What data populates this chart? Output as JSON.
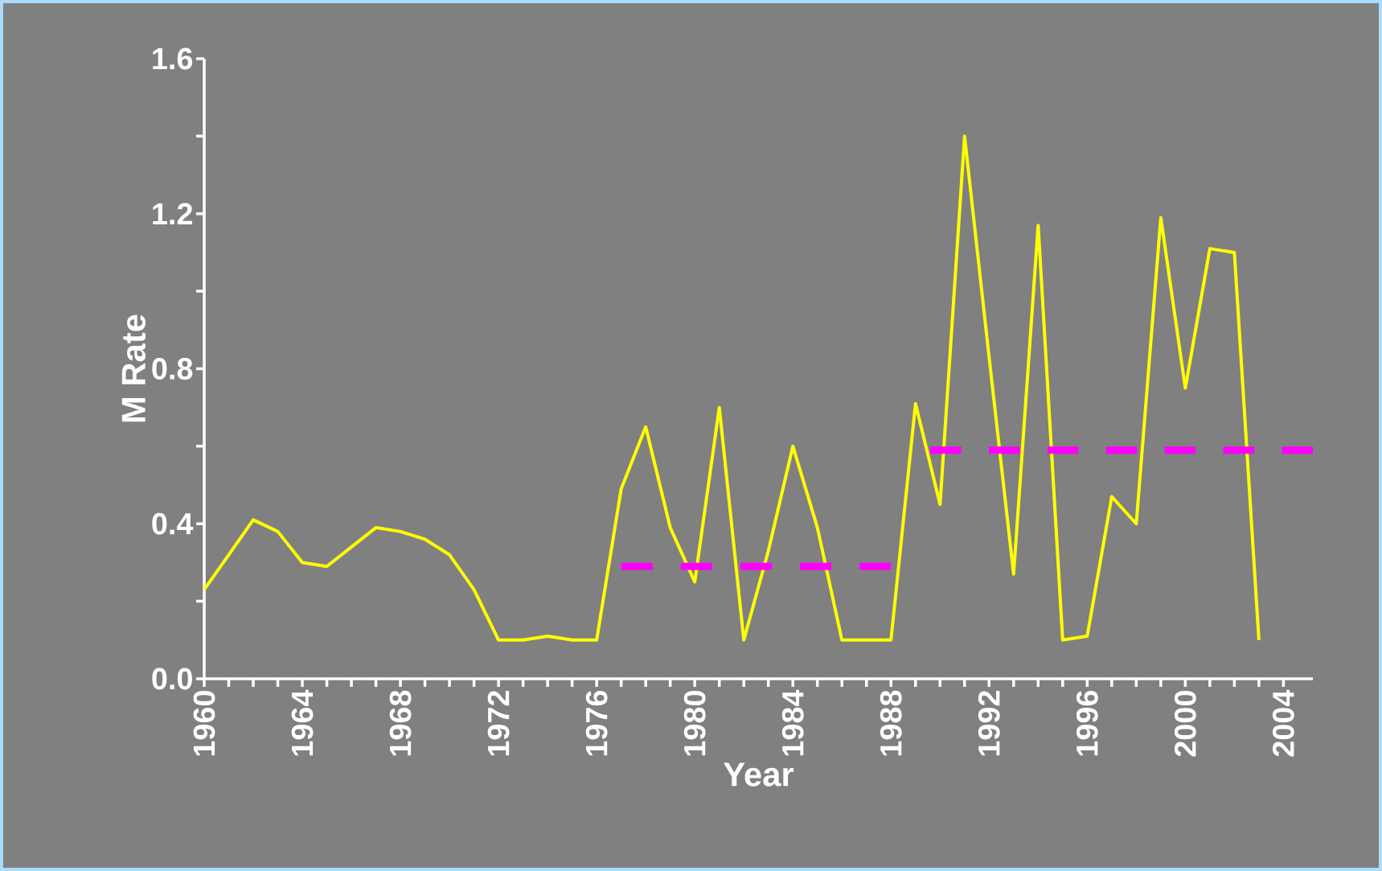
{
  "chart_data": {
    "type": "line",
    "xlabel": "Year",
    "ylabel": "M Rate",
    "xlim": [
      1960,
      2005.2
    ],
    "ylim": [
      0,
      1.6
    ],
    "xticks": [
      1960,
      {
        "value": 1961,
        "label": null
      },
      {
        "value": 1962,
        "label": null
      },
      {
        "value": 1963,
        "label": null
      },
      1964,
      {
        "value": 1965,
        "label": null
      },
      {
        "value": 1966,
        "label": null
      },
      {
        "value": 1967,
        "label": null
      },
      1968,
      {
        "value": 1969,
        "label": null
      },
      {
        "value": 1970,
        "label": null
      },
      {
        "value": 1971,
        "label": null
      },
      1972,
      {
        "value": 1973,
        "label": null
      },
      {
        "value": 1974,
        "label": null
      },
      {
        "value": 1975,
        "label": null
      },
      1976,
      {
        "value": 1977,
        "label": null
      },
      {
        "value": 1978,
        "label": null
      },
      {
        "value": 1979,
        "label": null
      },
      1980,
      {
        "value": 1981,
        "label": null
      },
      {
        "value": 1982,
        "label": null
      },
      {
        "value": 1983,
        "label": null
      },
      1984,
      {
        "value": 1985,
        "label": null
      },
      {
        "value": 1986,
        "label": null
      },
      {
        "value": 1987,
        "label": null
      },
      1988,
      {
        "value": 1989,
        "label": null
      },
      {
        "value": 1990,
        "label": null
      },
      {
        "value": 1991,
        "label": null
      },
      1992,
      {
        "value": 1993,
        "label": null
      },
      {
        "value": 1994,
        "label": null
      },
      {
        "value": 1995,
        "label": null
      },
      1996,
      {
        "value": 1997,
        "label": null
      },
      {
        "value": 1998,
        "label": null
      },
      {
        "value": 1999,
        "label": null
      },
      2000,
      {
        "value": 2001,
        "label": null
      },
      {
        "value": 2002,
        "label": null
      },
      {
        "value": 2003,
        "label": null
      },
      2004
    ],
    "yticks": [
      {
        "value": 0,
        "label": "0.0"
      },
      {
        "value": 0.2,
        "label": null
      },
      0.4,
      {
        "value": 0.6,
        "label": null
      },
      0.8,
      {
        "value": 1.0,
        "label": null
      },
      1.2,
      {
        "value": 1.4,
        "label": null
      },
      1.6
    ],
    "x": [
      1960,
      1961,
      1962,
      1963,
      1964,
      1965,
      1966,
      1967,
      1968,
      1969,
      1970,
      1971,
      1972,
      1973,
      1974,
      1975,
      1976,
      1977,
      1978,
      1979,
      1980,
      1981,
      1982,
      1983,
      1984,
      1985,
      1986,
      1987,
      1988,
      1989,
      1990,
      1991,
      1992,
      1993,
      1994,
      1995,
      1996,
      1997,
      1998,
      1999,
      2000,
      2001,
      2002,
      2003
    ],
    "series": [
      {
        "color": "#ffff00",
        "line_style": "solid",
        "values": [
          0.23,
          0.32,
          0.41,
          0.38,
          0.3,
          0.29,
          0.34,
          0.39,
          0.38,
          0.36,
          0.32,
          0.23,
          0.1,
          0.1,
          0.11,
          0.1,
          0.1,
          0.49,
          0.65,
          0.39,
          0.25,
          0.7,
          0.1,
          0.33,
          0.6,
          0.39,
          0.1,
          0.1,
          0.1,
          0.71,
          0.45,
          1.4,
          0.83,
          0.27,
          1.17,
          0.1,
          0.11,
          0.47,
          0.4,
          1.19,
          0.75,
          1.11,
          1.1,
          0.1
        ]
      },
      {
        "color": "#ff00ff",
        "line_style": "dashed",
        "x": [
          1977,
          1988
        ],
        "values": [
          0.29,
          0.29
        ]
      },
      {
        "color": "#ff00ff",
        "line_style": "dashed",
        "x": [
          1989.6,
          2005.2
        ],
        "values": [
          0.59,
          0.59
        ]
      }
    ]
  }
}
